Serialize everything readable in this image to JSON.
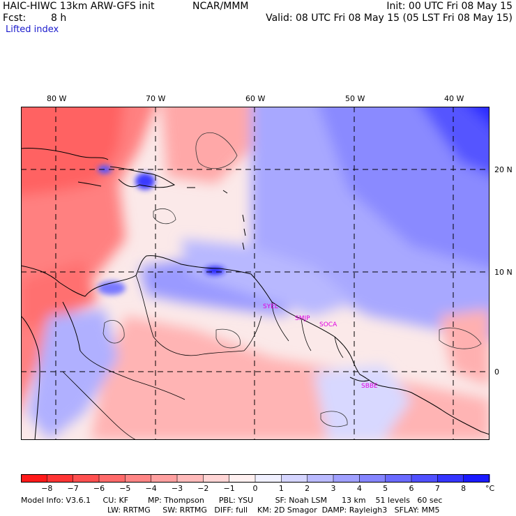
{
  "header": {
    "model": "HAIC-HIWC 13km ARW-GFS init",
    "org": "NCAR/MMM",
    "forecast_label": "Fcst:",
    "forecast_value": "8 h",
    "init": "Init: 00 UTC Fri 08 May 15",
    "valid": "Valid: 08 UTC Fri 08 May 15 (05 LST Fri 08 May 15)",
    "field": "Lifted index"
  },
  "map": {
    "lon_labels": [
      "80 W",
      "70 W",
      "60 W",
      "50 W",
      "40 W"
    ],
    "lat_labels": [
      "20 N",
      "10 N",
      "0"
    ],
    "stations": [
      "SYEL",
      "SMJP",
      "SOCA",
      "SBBE"
    ]
  },
  "colorbar": {
    "ticks": [
      "−8",
      "−7",
      "−6",
      "−5",
      "−4",
      "−3",
      "−2",
      "−1",
      "0",
      "1",
      "2",
      "3",
      "4",
      "5",
      "6",
      "7",
      "8"
    ],
    "unit": "°C",
    "colors": [
      "#ff1a1a",
      "#ff3535",
      "#ff5050",
      "#ff6a6a",
      "#ff8585",
      "#ffa0a0",
      "#ffbaba",
      "#ffd5d5",
      "#fff0f0",
      "#f0f0ff",
      "#d5d5ff",
      "#babaff",
      "#a0a0ff",
      "#8585ff",
      "#6a6aff",
      "#5050ff",
      "#3535ff",
      "#1a1aff"
    ]
  },
  "footer": {
    "line1": "Model Info: V3.6.1     CU: KF        MP: Thompson      PBL: YSU         SF: Noah LSM      13 km    51 levels   60 sec",
    "line2": "LW: RRTMG     SW: RRTMG   DIFF: full    KM: 2D Smagor  DAMP: Rayleigh3   SFLAY: MM5"
  }
}
